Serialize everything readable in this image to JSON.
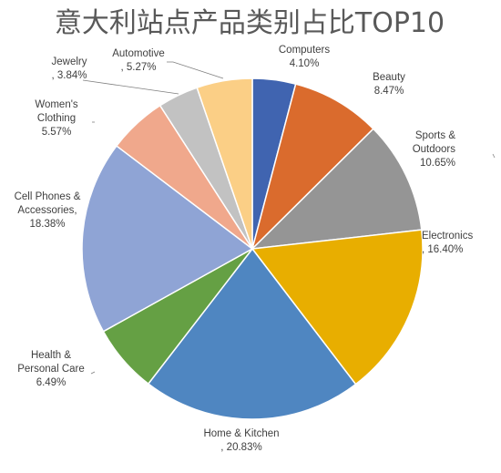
{
  "chart_data": {
    "type": "pie",
    "title": "意大利站点产品类别占比TOP10",
    "slices": [
      {
        "name": "Computers",
        "value": 4.1,
        "label": "4.10%",
        "color": "#4064B0"
      },
      {
        "name": "Beauty",
        "value": 8.47,
        "label": "8.47%",
        "color": "#DA6B2D"
      },
      {
        "name": "Sports & Outdoors",
        "value": 10.65,
        "label": "10.65%",
        "color": "#959595"
      },
      {
        "name": "Electronics",
        "value": 16.4,
        "label": "16.40%",
        "color": "#E8AE00"
      },
      {
        "name": "Home & Kitchen",
        "value": 20.83,
        "label": "20.83%",
        "color": "#4F86C1"
      },
      {
        "name": "Health & Personal Care",
        "value": 6.49,
        "label": "6.49%",
        "color": "#65A044"
      },
      {
        "name": "Cell Phones & Accessories",
        "value": 18.38,
        "label": "18.38%",
        "color": "#8FA4D5"
      },
      {
        "name": "Women's Clothing",
        "value": 5.57,
        "label": "5.57%",
        "color": "#F0A88C"
      },
      {
        "name": "Jewelry",
        "value": 3.84,
        "label": "3.84%",
        "color": "#C2C2C2"
      },
      {
        "name": "Automotive",
        "value": 5.27,
        "label": "5.27%",
        "color": "#FBCF86"
      }
    ],
    "legend": "none",
    "data_labels": "category name and percentage, outside with leader lines"
  }
}
